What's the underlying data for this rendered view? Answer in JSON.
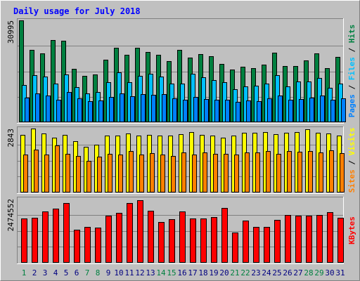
{
  "chart_data": {
    "type": "bar",
    "title": "Daily usage for July 2018",
    "categories": [
      "1",
      "2",
      "3",
      "4",
      "5",
      "6",
      "7",
      "8",
      "9",
      "10",
      "11",
      "12",
      "13",
      "14",
      "15",
      "16",
      "17",
      "18",
      "19",
      "20",
      "21",
      "22",
      "23",
      "24",
      "25",
      "26",
      "27",
      "28",
      "29",
      "30",
      "31"
    ],
    "weekend_days": [
      "1",
      "7",
      "8",
      "14",
      "15",
      "21",
      "22",
      "28",
      "29"
    ],
    "panels": [
      {
        "id": "hits-files-pages",
        "ylabel_parts": [
          "Pages",
          "Files",
          "Hits"
        ],
        "ymax_label": "30995",
        "ylim": [
          0,
          30995
        ],
        "series": [
          {
            "name": "Hits",
            "color": "#008040",
            "values": [
              30995,
              22000,
              21000,
              25000,
              24800,
              16200,
              14200,
              14600,
              19000,
              22600,
              20500,
              22600,
              21300,
              20500,
              18600,
              22000,
              19700,
              20800,
              20100,
              17700,
              16000,
              16900,
              16500,
              17600,
              21200,
              17000,
              17000,
              18800,
              21000,
              16400,
              19800
            ]
          },
          {
            "name": "Files",
            "color": "#00c0ff",
            "values": [
              11300,
              14300,
              14000,
              11700,
              14500,
              10600,
              8800,
              9200,
              12200,
              15100,
              12100,
              14100,
              14700,
              14000,
              11700,
              11700,
              14800,
              13600,
              12900,
              12200,
              10100,
              10900,
              11100,
              11800,
              14300,
              11000,
              12400,
              12300,
              13400,
              10500,
              11700
            ]
          },
          {
            "name": "Pages",
            "color": "#0080ff",
            "values": [
              7400,
              8800,
              8200,
              6900,
              9200,
              7200,
              6400,
              6600,
              7700,
              8800,
              8000,
              8600,
              8400,
              8500,
              7200,
              6800,
              7600,
              7100,
              6800,
              6800,
              6300,
              6600,
              6500,
              7200,
              8200,
              6900,
              7100,
              7500,
              8100,
              6900,
              7300
            ]
          }
        ]
      },
      {
        "id": "visits-sites",
        "ylabel_parts": [
          "Sites",
          "Visits"
        ],
        "ymax_label": "2843",
        "ylim": [
          0,
          2843
        ],
        "series": [
          {
            "name": "Visits",
            "color": "#ffff00",
            "values": [
              2550,
              2843,
              2620,
              2440,
              2570,
              2290,
              2020,
              2130,
              2540,
              2540,
              2620,
              2540,
              2550,
              2520,
              2540,
              2600,
              2680,
              2560,
              2540,
              2440,
              2540,
              2650,
              2640,
              2690,
              2590,
              2640,
              2680,
              2800,
              2650,
              2610,
              2530
            ]
          },
          {
            "name": "Sites",
            "color": "#ff8000",
            "values": [
              1700,
              1900,
              1680,
              2080,
              1720,
              1620,
              1420,
              1600,
              1720,
              1700,
              1850,
              1700,
              1750,
              1680,
              1620,
              1790,
              1700,
              1790,
              1720,
              1730,
              1700,
              1790,
              1770,
              1830,
              1720,
              1830,
              1800,
              1830,
              1770,
              1870,
              1750
            ]
          }
        ]
      },
      {
        "id": "kbytes",
        "ylabel_parts": [
          "KBytes"
        ],
        "ymax_label": "2474552",
        "ylim": [
          0,
          2474552
        ],
        "series": [
          {
            "name": "KBytes",
            "color": "#ff0000",
            "values": [
              1720000,
              1740000,
              1980000,
              2100000,
              2300000,
              1270000,
              1400000,
              1360000,
              1830000,
              1930000,
              2320000,
              2410000,
              2000000,
              1580000,
              1690000,
              1990000,
              1710000,
              1720000,
              1780000,
              2130000,
              1180000,
              1630000,
              1380000,
              1400000,
              1670000,
              1850000,
              1810000,
              1830000,
              1850000,
              1970000,
              1740000
            ]
          }
        ]
      }
    ]
  },
  "colors": {
    "background": "#c0c0c0",
    "frame_light": "#ffffff",
    "frame_dark": "#808080",
    "title": "#0000ff",
    "grid": "#808080",
    "weekday_label": "#000080",
    "weekend_label": "#008040",
    "separator": "#000000"
  }
}
